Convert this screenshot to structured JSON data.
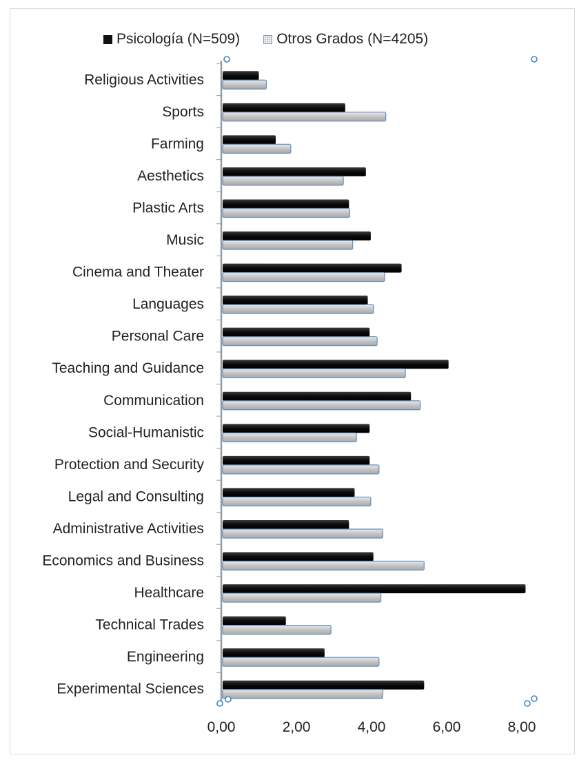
{
  "chart_data": {
    "type": "bar",
    "orientation": "horizontal",
    "categories": [
      "Religious Activities",
      "Sports",
      "Farming",
      "Aesthetics",
      "Plastic Arts",
      "Music",
      "Cinema and Theater",
      "Languages",
      "Personal Care",
      "Teaching and Guidance",
      "Communication",
      "Social-Humanistic",
      "Protection and Security",
      "Legal and Consulting",
      "Administrative Activities",
      "Economics and Business",
      "Healthcare",
      "Technical Trades",
      "Engineering",
      "Experimental Sciences"
    ],
    "series": [
      {
        "name": "Psicología (N=509)",
        "color": "#111111",
        "values": [
          1.0,
          3.3,
          1.45,
          3.85,
          3.4,
          3.98,
          4.8,
          3.9,
          3.95,
          6.05,
          5.05,
          3.95,
          3.95,
          3.55,
          3.4,
          4.05,
          8.1,
          1.72,
          2.75,
          5.4
        ]
      },
      {
        "name": "Otros Grados (N=4205)",
        "color": "#c8c8c8",
        "values": [
          1.2,
          4.38,
          1.85,
          3.25,
          3.42,
          3.5,
          4.35,
          4.05,
          4.15,
          4.9,
          5.3,
          3.6,
          4.2,
          3.98,
          4.3,
          5.4,
          4.25,
          2.92,
          4.2,
          4.3
        ]
      }
    ],
    "xlim": [
      0,
      8
    ],
    "xticks": [
      0,
      2,
      4,
      6,
      8
    ],
    "xtick_labels": [
      "0,00",
      "2,00",
      "4,00",
      "6,00",
      "8,00"
    ],
    "xlabel": "",
    "ylabel": "",
    "title": "",
    "legend_position": "top",
    "grid": false
  }
}
